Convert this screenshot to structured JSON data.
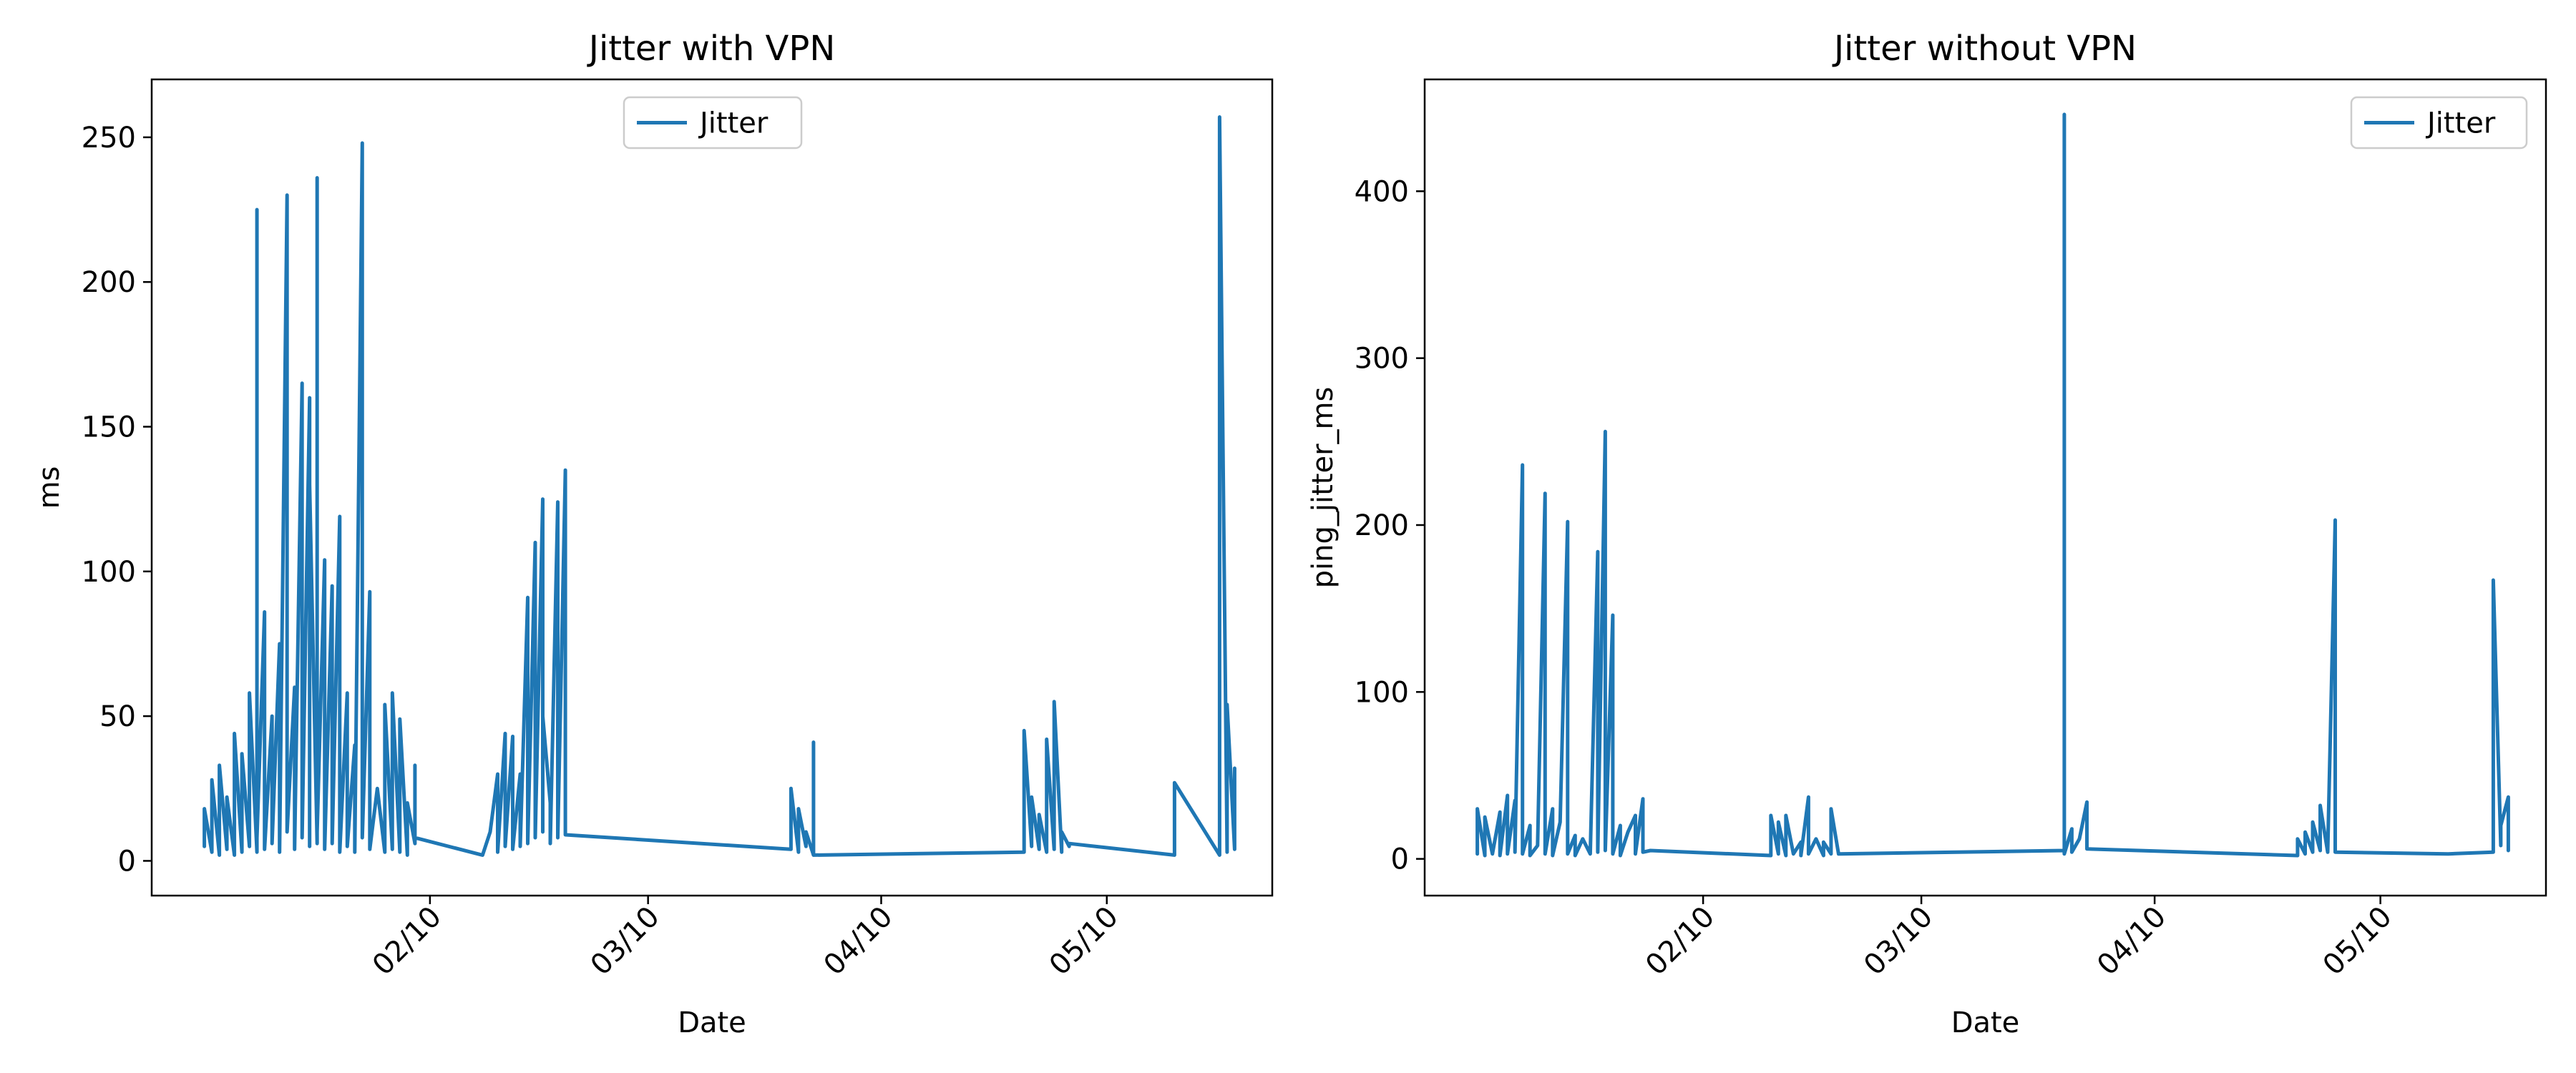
{
  "chart_data": [
    {
      "type": "line",
      "title": "Jitter with VPN",
      "xlabel": "Date",
      "ylabel": "ms",
      "x_type": "date",
      "xlim": [
        "2024-01-04",
        "2024-06-01"
      ],
      "ylim": [
        -12,
        270
      ],
      "yticks": [
        0,
        50,
        100,
        150,
        200,
        250
      ],
      "xticks": [
        {
          "date": "2024-02-10",
          "label": "02/10"
        },
        {
          "date": "2024-03-10",
          "label": "03/10"
        },
        {
          "date": "2024-04-10",
          "label": "04/10"
        },
        {
          "date": "2024-05-10",
          "label": "05/10"
        }
      ],
      "grid": false,
      "legend_position": "top-center",
      "series": [
        {
          "name": "Jitter",
          "color": "#1f77b4",
          "points": [
            [
              "2024-01-11",
              5
            ],
            [
              "2024-01-11",
              18
            ],
            [
              "2024-01-12",
              3
            ],
            [
              "2024-01-12",
              28
            ],
            [
              "2024-01-13",
              2
            ],
            [
              "2024-01-13",
              33
            ],
            [
              "2024-01-14",
              4
            ],
            [
              "2024-01-14",
              22
            ],
            [
              "2024-01-15",
              2
            ],
            [
              "2024-01-15",
              44
            ],
            [
              "2024-01-16",
              3
            ],
            [
              "2024-01-16",
              37
            ],
            [
              "2024-01-17",
              5
            ],
            [
              "2024-01-17",
              58
            ],
            [
              "2024-01-18",
              3
            ],
            [
              "2024-01-18",
              225
            ],
            [
              "2024-01-18",
              8
            ],
            [
              "2024-01-19",
              86
            ],
            [
              "2024-01-19",
              4
            ],
            [
              "2024-01-20",
              50
            ],
            [
              "2024-01-20",
              6
            ],
            [
              "2024-01-21",
              75
            ],
            [
              "2024-01-21",
              3
            ],
            [
              "2024-01-22",
              230
            ],
            [
              "2024-01-22",
              10
            ],
            [
              "2024-01-23",
              60
            ],
            [
              "2024-01-23",
              4
            ],
            [
              "2024-01-24",
              165
            ],
            [
              "2024-01-24",
              8
            ],
            [
              "2024-01-25",
              160
            ],
            [
              "2024-01-25",
              5
            ],
            [
              "2024-01-25",
              130
            ],
            [
              "2024-01-26",
              6
            ],
            [
              "2024-01-26",
              236
            ],
            [
              "2024-01-26",
              10
            ],
            [
              "2024-01-27",
              104
            ],
            [
              "2024-01-27",
              4
            ],
            [
              "2024-01-28",
              95
            ],
            [
              "2024-01-28",
              6
            ],
            [
              "2024-01-29",
              119
            ],
            [
              "2024-01-29",
              3
            ],
            [
              "2024-01-30",
              58
            ],
            [
              "2024-01-30",
              5
            ],
            [
              "2024-01-31",
              40
            ],
            [
              "2024-01-31",
              3
            ],
            [
              "2024-02-01",
              248
            ],
            [
              "2024-02-01",
              8
            ],
            [
              "2024-02-02",
              93
            ],
            [
              "2024-02-02",
              4
            ],
            [
              "2024-02-03",
              25
            ],
            [
              "2024-02-04",
              3
            ],
            [
              "2024-02-04",
              54
            ],
            [
              "2024-02-05",
              4
            ],
            [
              "2024-02-05",
              58
            ],
            [
              "2024-02-06",
              3
            ],
            [
              "2024-02-06",
              49
            ],
            [
              "2024-02-07",
              2
            ],
            [
              "2024-02-07",
              20
            ],
            [
              "2024-02-08",
              6
            ],
            [
              "2024-02-08",
              33
            ],
            [
              "2024-02-08",
              8
            ],
            [
              "2024-02-17",
              2
            ],
            [
              "2024-02-18",
              10
            ],
            [
              "2024-02-19",
              30
            ],
            [
              "2024-02-19",
              3
            ],
            [
              "2024-02-20",
              44
            ],
            [
              "2024-02-20",
              5
            ],
            [
              "2024-02-21",
              43
            ],
            [
              "2024-02-21",
              4
            ],
            [
              "2024-02-22",
              30
            ],
            [
              "2024-02-22",
              5
            ],
            [
              "2024-02-23",
              91
            ],
            [
              "2024-02-23",
              6
            ],
            [
              "2024-02-24",
              110
            ],
            [
              "2024-02-24",
              8
            ],
            [
              "2024-02-25",
              125
            ],
            [
              "2024-02-25",
              10
            ],
            [
              "2024-02-25",
              50
            ],
            [
              "2024-02-26",
              20
            ],
            [
              "2024-02-26",
              6
            ],
            [
              "2024-02-27",
              124
            ],
            [
              "2024-02-27",
              8
            ],
            [
              "2024-02-28",
              135
            ],
            [
              "2024-02-28",
              9
            ],
            [
              "2024-03-29",
              4
            ],
            [
              "2024-03-29",
              25
            ],
            [
              "2024-03-30",
              3
            ],
            [
              "2024-03-30",
              18
            ],
            [
              "2024-03-31",
              5
            ],
            [
              "2024-03-31",
              10
            ],
            [
              "2024-04-01",
              2
            ],
            [
              "2024-04-01",
              41
            ],
            [
              "2024-04-01",
              2
            ],
            [
              "2024-04-29",
              3
            ],
            [
              "2024-04-29",
              45
            ],
            [
              "2024-04-30",
              5
            ],
            [
              "2024-04-30",
              22
            ],
            [
              "2024-05-01",
              4
            ],
            [
              "2024-05-01",
              16
            ],
            [
              "2024-05-02",
              3
            ],
            [
              "2024-05-02",
              42
            ],
            [
              "2024-05-03",
              4
            ],
            [
              "2024-05-03",
              55
            ],
            [
              "2024-05-04",
              3
            ],
            [
              "2024-05-04",
              10
            ],
            [
              "2024-05-05",
              5
            ],
            [
              "2024-05-05",
              6
            ],
            [
              "2024-05-19",
              2
            ],
            [
              "2024-05-19",
              27
            ],
            [
              "2024-05-25",
              2
            ],
            [
              "2024-05-25",
              257
            ],
            [
              "2024-05-26",
              3
            ],
            [
              "2024-05-26",
              16
            ],
            [
              "2024-05-26",
              54
            ],
            [
              "2024-05-27",
              4
            ],
            [
              "2024-05-27",
              32
            ],
            [
              "2024-05-27",
              5
            ]
          ]
        }
      ]
    },
    {
      "type": "line",
      "title": "Jitter without VPN",
      "xlabel": "Date",
      "ylabel": "ping_jitter_ms",
      "x_type": "date",
      "xlim": [
        "2024-01-04",
        "2024-06-01"
      ],
      "ylim": [
        -22,
        467
      ],
      "yticks": [
        0,
        100,
        200,
        300,
        400
      ],
      "xticks": [
        {
          "date": "2024-02-10",
          "label": "02/10"
        },
        {
          "date": "2024-03-10",
          "label": "03/10"
        },
        {
          "date": "2024-04-10",
          "label": "04/10"
        },
        {
          "date": "2024-05-10",
          "label": "05/10"
        }
      ],
      "grid": false,
      "legend_position": "top-right",
      "series": [
        {
          "name": "Jitter",
          "color": "#1f77b4",
          "points": [
            [
              "2024-01-11",
              3
            ],
            [
              "2024-01-11",
              30
            ],
            [
              "2024-01-12",
              2
            ],
            [
              "2024-01-12",
              25
            ],
            [
              "2024-01-13",
              3
            ],
            [
              "2024-01-14",
              28
            ],
            [
              "2024-01-14",
              2
            ],
            [
              "2024-01-15",
              38
            ],
            [
              "2024-01-15",
              3
            ],
            [
              "2024-01-16",
              35
            ],
            [
              "2024-01-16",
              4
            ],
            [
              "2024-01-17",
              236
            ],
            [
              "2024-01-17",
              226
            ],
            [
              "2024-01-17",
              3
            ],
            [
              "2024-01-18",
              20
            ],
            [
              "2024-01-18",
              2
            ],
            [
              "2024-01-19",
              8
            ],
            [
              "2024-01-20",
              219
            ],
            [
              "2024-01-20",
              195
            ],
            [
              "2024-01-20",
              3
            ],
            [
              "2024-01-21",
              30
            ],
            [
              "2024-01-21",
              2
            ],
            [
              "2024-01-22",
              22
            ],
            [
              "2024-01-23",
              202
            ],
            [
              "2024-01-23",
              3
            ],
            [
              "2024-01-24",
              14
            ],
            [
              "2024-01-24",
              2
            ],
            [
              "2024-01-25",
              12
            ],
            [
              "2024-01-26",
              3
            ],
            [
              "2024-01-27",
              184
            ],
            [
              "2024-01-27",
              4
            ],
            [
              "2024-01-28",
              256
            ],
            [
              "2024-01-28",
              5
            ],
            [
              "2024-01-29",
              146
            ],
            [
              "2024-01-29",
              3
            ],
            [
              "2024-01-30",
              20
            ],
            [
              "2024-01-30",
              2
            ],
            [
              "2024-01-31",
              16
            ],
            [
              "2024-02-01",
              26
            ],
            [
              "2024-02-01",
              3
            ],
            [
              "2024-02-02",
              36
            ],
            [
              "2024-02-02",
              4
            ],
            [
              "2024-02-03",
              5
            ],
            [
              "2024-02-19",
              2
            ],
            [
              "2024-02-19",
              26
            ],
            [
              "2024-02-20",
              3
            ],
            [
              "2024-02-20",
              22
            ],
            [
              "2024-02-21",
              2
            ],
            [
              "2024-02-21",
              26
            ],
            [
              "2024-02-22",
              3
            ],
            [
              "2024-02-23",
              10
            ],
            [
              "2024-02-23",
              2
            ],
            [
              "2024-02-24",
              37
            ],
            [
              "2024-02-24",
              3
            ],
            [
              "2024-02-25",
              12
            ],
            [
              "2024-02-26",
              2
            ],
            [
              "2024-02-26",
              10
            ],
            [
              "2024-02-27",
              3
            ],
            [
              "2024-02-27",
              30
            ],
            [
              "2024-02-28",
              3
            ],
            [
              "2024-03-29",
              5
            ],
            [
              "2024-03-29",
              446
            ],
            [
              "2024-03-29",
              3
            ],
            [
              "2024-03-30",
              18
            ],
            [
              "2024-03-30",
              4
            ],
            [
              "2024-03-31",
              12
            ],
            [
              "2024-04-01",
              34
            ],
            [
              "2024-04-01",
              6
            ],
            [
              "2024-04-29",
              2
            ],
            [
              "2024-04-29",
              12
            ],
            [
              "2024-04-30",
              3
            ],
            [
              "2024-04-30",
              16
            ],
            [
              "2024-05-01",
              4
            ],
            [
              "2024-05-01",
              22
            ],
            [
              "2024-05-02",
              5
            ],
            [
              "2024-05-02",
              32
            ],
            [
              "2024-05-03",
              4
            ],
            [
              "2024-05-04",
              203
            ],
            [
              "2024-05-04",
              4
            ],
            [
              "2024-05-19",
              3
            ],
            [
              "2024-05-25",
              4
            ],
            [
              "2024-05-25",
              167
            ],
            [
              "2024-05-26",
              8
            ],
            [
              "2024-05-26",
              20
            ],
            [
              "2024-05-27",
              37
            ],
            [
              "2024-05-27",
              6
            ],
            [
              "2024-05-27",
              5
            ]
          ]
        }
      ]
    }
  ]
}
